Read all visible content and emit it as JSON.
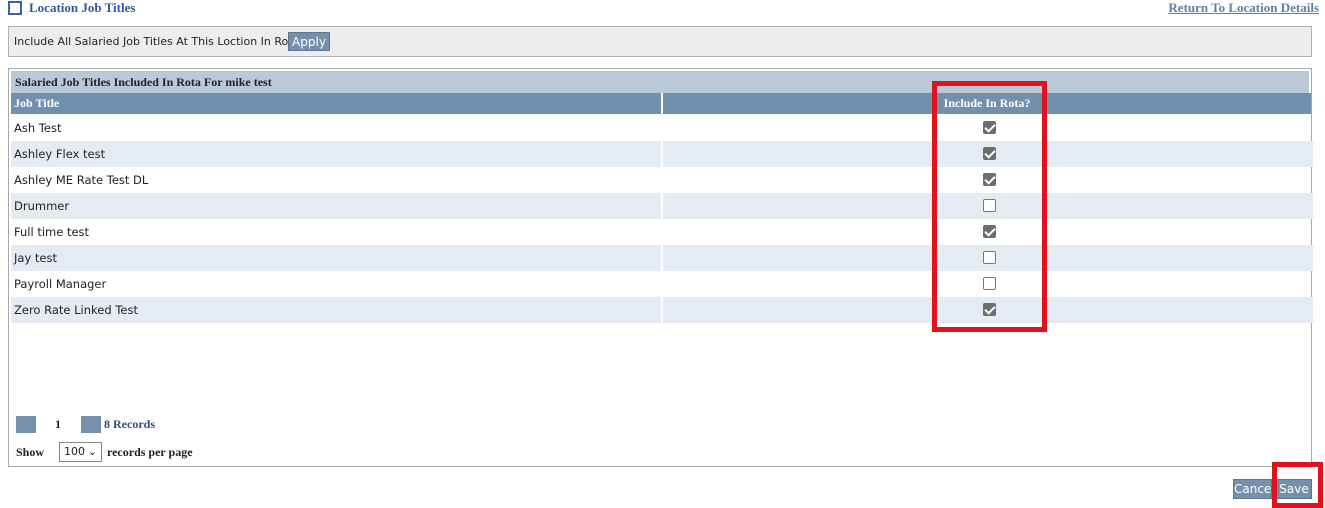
{
  "header": {
    "title": "Location Job Titles",
    "return_link": "Return To Location Details"
  },
  "filter_bar": {
    "label": "Include All Salaried Job Titles At This Loction In Rota",
    "button": "Apply"
  },
  "panel": {
    "title": "Salaried Job Titles Included In Rota For mike test",
    "columns": [
      "Job Title",
      "Include In Rota?"
    ],
    "rows": [
      {
        "job_title": "Ash Test",
        "checked": true
      },
      {
        "job_title": "Ashley Flex test",
        "checked": true
      },
      {
        "job_title": "Ashley ME Rate Test DL",
        "checked": true
      },
      {
        "job_title": "Drummer",
        "checked": false
      },
      {
        "job_title": "Full time test",
        "checked": true
      },
      {
        "job_title": "Jay test",
        "checked": false
      },
      {
        "job_title": "Payroll Manager",
        "checked": false
      },
      {
        "job_title": "Zero Rate Linked Test",
        "checked": true
      }
    ],
    "pagination": {
      "page": "1",
      "records": "8 Records"
    },
    "page_size": {
      "show": "Show",
      "value": "100",
      "suffix": "records per page"
    }
  },
  "footer": {
    "cancel": "Cancel",
    "save": "Save"
  }
}
